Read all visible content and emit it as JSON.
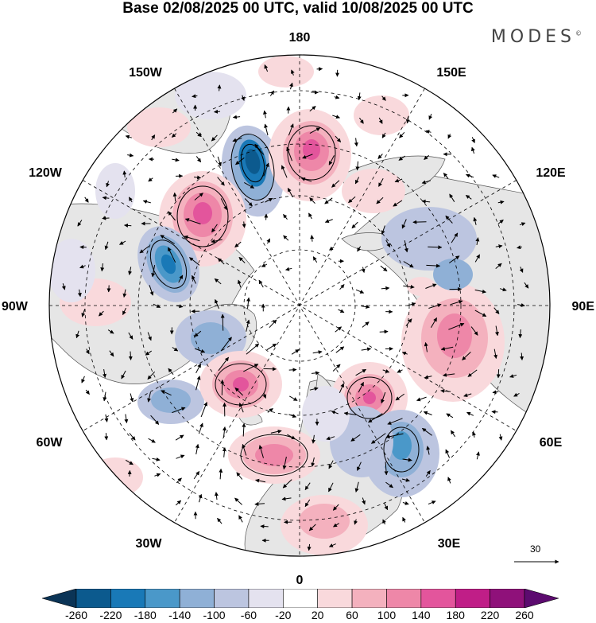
{
  "header": {
    "title": "Base 02/08/2025 00 UTC, valid 10/08/2025 00 UTC",
    "brand": "MODES",
    "brand_mark": "©"
  },
  "map": {
    "projection": "north-polar-stereographic",
    "longitude_labels": {
      "top": "180",
      "top_left": "150W",
      "upper_left": "120W",
      "left": "90W",
      "lower_left": "60W",
      "bottom_left": "30W",
      "bottom": "0",
      "bottom_right": "30E",
      "lower_right": "60E",
      "right": "90E",
      "upper_right": "120E",
      "top_right": "150E"
    },
    "wind_scale": {
      "label": "30"
    },
    "anomaly_centers": [
      {
        "sign": "negative",
        "value": -200,
        "region": "Gulf of Alaska"
      },
      {
        "sign": "negative",
        "value": -180,
        "region": "Canadian Prairies"
      },
      {
        "sign": "negative",
        "value": -100,
        "region": "Hudson Bay"
      },
      {
        "sign": "negative",
        "value": -100,
        "region": "Labrador Sea"
      },
      {
        "sign": "negative",
        "value": -120,
        "region": "Western Siberia"
      },
      {
        "sign": "negative",
        "value": -60,
        "region": "Scandinavia"
      },
      {
        "sign": "positive",
        "value": 180,
        "region": "Bering Sea"
      },
      {
        "sign": "positive",
        "value": 160,
        "region": "Western Canada"
      },
      {
        "sign": "positive",
        "value": 160,
        "region": "Greenland"
      },
      {
        "sign": "positive",
        "value": 140,
        "region": "Barents Sea"
      },
      {
        "sign": "positive",
        "value": 120,
        "region": "Central Siberia"
      },
      {
        "sign": "positive",
        "value": 120,
        "region": "North Atlantic"
      },
      {
        "sign": "positive",
        "value": 60,
        "region": "Eastern Europe"
      }
    ]
  },
  "colorbar": {
    "labels": [
      "-260",
      "-220",
      "-180",
      "-140",
      "-100",
      "-60",
      "-20",
      "20",
      "60",
      "100",
      "140",
      "180",
      "220",
      "260"
    ],
    "colors": [
      "#0b3456",
      "#0c5a8e",
      "#1979b7",
      "#4a98c9",
      "#8fb0d6",
      "#bcc5e0",
      "#e4e2ef",
      "#ffffff",
      "#f9d9dc",
      "#f4b1be",
      "#ee87a8",
      "#e3559c",
      "#c01e87",
      "#8f117a",
      "#5c0b6f"
    ]
  }
}
